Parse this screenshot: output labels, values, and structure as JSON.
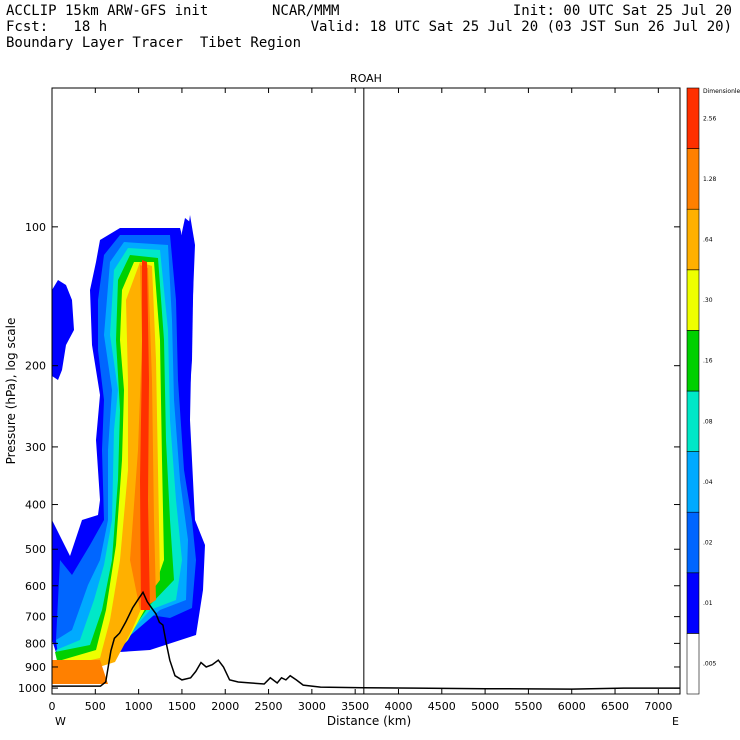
{
  "header": {
    "line1_left": "ACCLIP 15km ARW-GFS init",
    "line1_mid": "NCAR/MMM",
    "line1_right": "Init: 00 UTC Sat 25 Jul 20",
    "line2_left": "Fcst:   18 h",
    "line2_right": "Valid: 18 UTC Sat 25 Jul 20 (03 JST Sun 26 Jul 20)",
    "line3_left": "Boundary Layer Tracer  Tibet Region"
  },
  "chart_data": {
    "type": "heatmap",
    "title": "ROAH",
    "xlabel": "Distance (km)",
    "ylabel": "Pressure (hPa), log scale",
    "x_ticks": [
      0,
      500,
      1000,
      1500,
      2000,
      2500,
      3000,
      3500,
      4000,
      4500,
      5000,
      5500,
      6000,
      6500,
      7000
    ],
    "y_ticks": [
      100,
      200,
      300,
      400,
      500,
      600,
      700,
      800,
      900,
      1000
    ],
    "xlim": [
      0,
      7250
    ],
    "ylim": [
      1030,
      50
    ],
    "x_end_labels": {
      "left": "W",
      "right": "E"
    },
    "marker_line_km": 3600,
    "colorbar": {
      "levels": [
        ".005",
        ".01",
        ".02",
        ".04",
        ".08",
        ".16",
        ".30",
        ".64",
        "1.28",
        "2.56",
        "Dimensionless"
      ],
      "colors": [
        "#ffffff",
        "#0000ff",
        "#0066ff",
        "#00aaff",
        "#00e8c8",
        "#00d000",
        "#eeff00",
        "#ffb000",
        "#ff8000",
        "#ff3000"
      ]
    },
    "terrain": [
      [
        0,
        990
      ],
      [
        300,
        990
      ],
      [
        560,
        990
      ],
      [
        620,
        970
      ],
      [
        680,
        830
      ],
      [
        720,
        780
      ],
      [
        780,
        760
      ],
      [
        850,
        720
      ],
      [
        930,
        670
      ],
      [
        1000,
        640
      ],
      [
        1050,
        620
      ],
      [
        1100,
        650
      ],
      [
        1150,
        670
      ],
      [
        1200,
        690
      ],
      [
        1240,
        720
      ],
      [
        1280,
        730
      ],
      [
        1320,
        800
      ],
      [
        1360,
        870
      ],
      [
        1420,
        940
      ],
      [
        1500,
        960
      ],
      [
        1600,
        950
      ],
      [
        1660,
        920
      ],
      [
        1720,
        880
      ],
      [
        1780,
        900
      ],
      [
        1850,
        890
      ],
      [
        1920,
        870
      ],
      [
        1980,
        900
      ],
      [
        2050,
        960
      ],
      [
        2150,
        970
      ],
      [
        2300,
        975
      ],
      [
        2450,
        980
      ],
      [
        2520,
        950
      ],
      [
        2600,
        975
      ],
      [
        2650,
        950
      ],
      [
        2700,
        960
      ],
      [
        2750,
        940
      ],
      [
        2820,
        960
      ],
      [
        2900,
        985
      ],
      [
        3100,
        995
      ],
      [
        3600,
        998
      ],
      [
        4200,
        1000
      ],
      [
        5000,
        1003
      ],
      [
        6000,
        1005
      ],
      [
        6600,
        1000
      ],
      [
        7250,
        1000
      ]
    ]
  }
}
